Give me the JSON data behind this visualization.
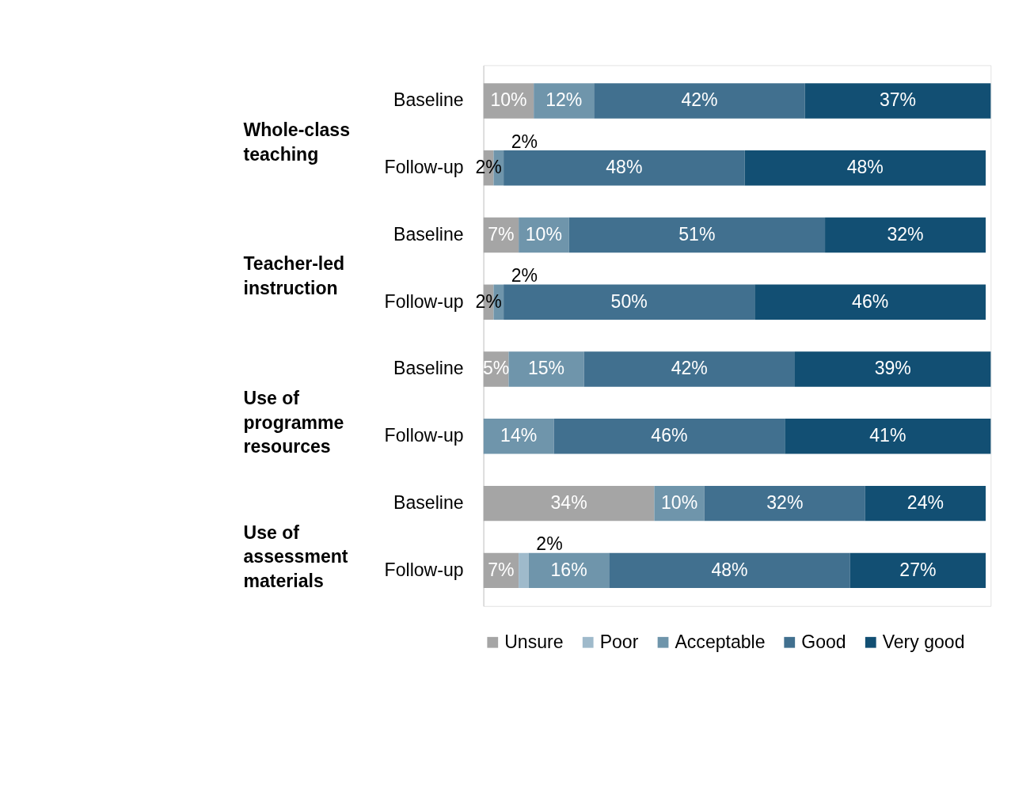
{
  "chart_data": {
    "type": "bar",
    "orientation": "horizontal",
    "stacked": true,
    "categories": [
      "Baseline",
      "Follow-up",
      "Baseline",
      "Follow-up",
      "Baseline",
      "Follow-up",
      "Baseline",
      "Follow-up"
    ],
    "annotations": [
      "Whole-class teaching",
      "Teacher-led instruction",
      "Use of programme resources",
      "Use of assessment materials"
    ],
    "series": [
      {
        "name": "Unsure",
        "color": "#a5a5a5",
        "values": [
          10,
          2,
          7,
          2,
          5,
          null,
          34,
          7
        ],
        "value_labels": [
          "10%",
          "2%",
          "7%",
          "2%",
          "5%",
          null,
          "34%",
          "7%"
        ]
      },
      {
        "name": "Poor",
        "color": "#9fbacb",
        "values": [
          null,
          null,
          null,
          null,
          null,
          null,
          null,
          2
        ],
        "value_labels": [
          null,
          null,
          null,
          null,
          null,
          null,
          null,
          "2%"
        ]
      },
      {
        "name": "Acceptable",
        "color": "#6f95ab",
        "values": [
          12,
          2,
          10,
          2,
          15,
          14,
          10,
          16
        ],
        "value_labels": [
          "12%",
          "2%",
          "10%",
          "2%",
          "15%",
          "14%",
          "10%",
          "16%"
        ]
      },
      {
        "name": "Good",
        "color": "#41708f",
        "values": [
          42,
          48,
          51,
          50,
          42,
          46,
          32,
          48
        ],
        "value_labels": [
          "42%",
          "48%",
          "51%",
          "50%",
          "42%",
          "46%",
          "32%",
          "48%"
        ]
      },
      {
        "name": "Very good",
        "color": "#124f73",
        "values": [
          37,
          48,
          32,
          46,
          39,
          41,
          24,
          27
        ],
        "value_labels": [
          "37%",
          "48%",
          "32%",
          "46%",
          "39%",
          "41%",
          "24%",
          "27%"
        ]
      }
    ],
    "xlim": [
      0,
      101
    ],
    "tick_labels": "y",
    "grid": false,
    "legend": "bottom"
  }
}
